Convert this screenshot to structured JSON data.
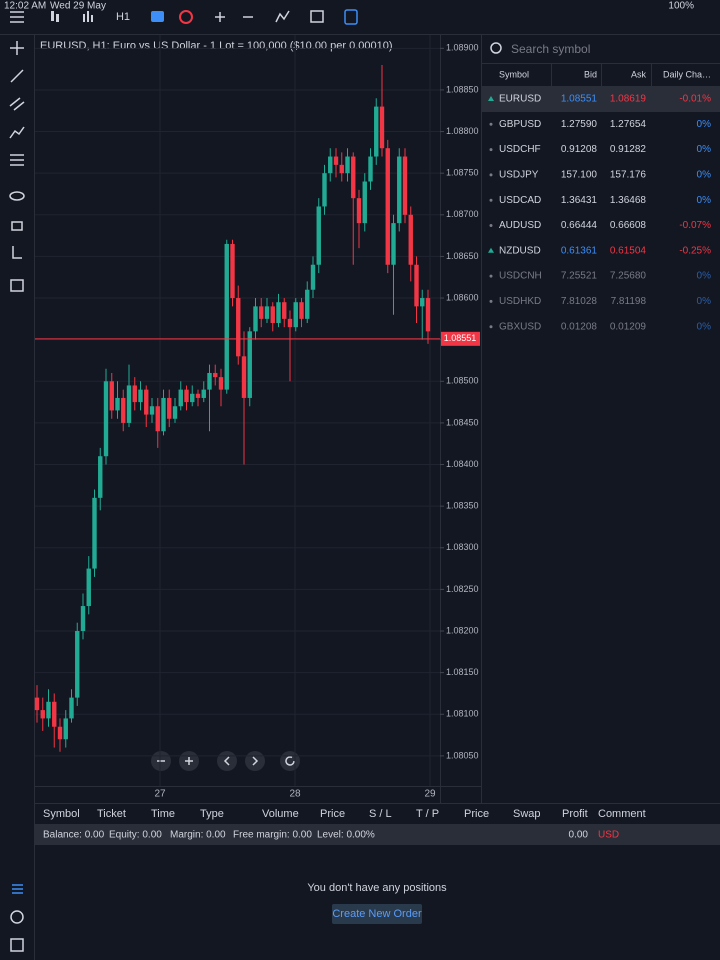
{
  "status_bar": {
    "time": "12:02 AM",
    "date": "Wed 29 May",
    "battery": "100%"
  },
  "toolbar": {
    "timeframe": "H1"
  },
  "chart": {
    "title": "EURUSD, H1: Euro vs US Dollar - 1 Lot = 100,000 ($10.00 per 0.00010)",
    "ylim": [
      1.07997,
      1.08916
    ],
    "yticks": [
      {
        "value": 1.089,
        "label": "1.08900"
      },
      {
        "value": 1.0885,
        "label": "1.08850"
      },
      {
        "value": 1.088,
        "label": "1.08800"
      },
      {
        "value": 1.0875,
        "label": "1.08750"
      },
      {
        "value": 1.087,
        "label": "1.08700"
      },
      {
        "value": 1.0865,
        "label": "1.08650"
      },
      {
        "value": 1.086,
        "label": "1.08600"
      },
      {
        "value": 1.0855,
        "label": "1.08550"
      },
      {
        "value": 1.085,
        "label": "1.08500"
      },
      {
        "value": 1.0845,
        "label": "1.08450"
      },
      {
        "value": 1.084,
        "label": "1.08400"
      },
      {
        "value": 1.0835,
        "label": "1.08350"
      },
      {
        "value": 1.083,
        "label": "1.08300"
      },
      {
        "value": 1.0825,
        "label": "1.08250"
      },
      {
        "value": 1.082,
        "label": "1.08200"
      },
      {
        "value": 1.0815,
        "label": "1.08150"
      },
      {
        "value": 1.081,
        "label": "1.08100"
      },
      {
        "value": 1.0805,
        "label": "1.08050"
      }
    ],
    "x_labels": [
      "27",
      "28",
      "29"
    ],
    "colors": {
      "up": "#22ab94",
      "down": "#f23645"
    },
    "last_price": {
      "value": 1.08551,
      "label": "1.08551"
    },
    "candles": [
      [
        1.0812,
        1.08135,
        1.0809,
        1.08105
      ],
      [
        1.08105,
        1.0812,
        1.0808,
        1.08095
      ],
      [
        1.08095,
        1.0813,
        1.08085,
        1.08115
      ],
      [
        1.08115,
        1.08125,
        1.0806,
        1.08085
      ],
      [
        1.08085,
        1.08095,
        1.08055,
        1.0807
      ],
      [
        1.0807,
        1.08105,
        1.0806,
        1.08095
      ],
      [
        1.08095,
        1.0813,
        1.0809,
        1.0812
      ],
      [
        1.0812,
        1.0821,
        1.0811,
        1.082
      ],
      [
        1.082,
        1.08245,
        1.0819,
        1.0823
      ],
      [
        1.0823,
        1.0829,
        1.0822,
        1.08275
      ],
      [
        1.08275,
        1.0837,
        1.08265,
        1.0836
      ],
      [
        1.0836,
        1.0842,
        1.08345,
        1.0841
      ],
      [
        1.0841,
        1.08515,
        1.084,
        1.085
      ],
      [
        1.085,
        1.0851,
        1.08455,
        1.08465
      ],
      [
        1.08465,
        1.085,
        1.08455,
        1.0848
      ],
      [
        1.0848,
        1.0849,
        1.0844,
        1.0845
      ],
      [
        1.0845,
        1.0852,
        1.08445,
        1.08495
      ],
      [
        1.08495,
        1.08505,
        1.08465,
        1.08475
      ],
      [
        1.08475,
        1.085,
        1.08465,
        1.0849
      ],
      [
        1.0849,
        1.08495,
        1.08445,
        1.0846
      ],
      [
        1.0846,
        1.0848,
        1.0845,
        1.0847
      ],
      [
        1.0847,
        1.0848,
        1.0842,
        1.0844
      ],
      [
        1.0844,
        1.0849,
        1.08435,
        1.0848
      ],
      [
        1.0848,
        1.0849,
        1.08445,
        1.08455
      ],
      [
        1.08455,
        1.0848,
        1.0845,
        1.0847
      ],
      [
        1.0847,
        1.085,
        1.08465,
        1.0849
      ],
      [
        1.0849,
        1.08495,
        1.08465,
        1.08475
      ],
      [
        1.08475,
        1.08495,
        1.0847,
        1.08485
      ],
      [
        1.08485,
        1.0849,
        1.0847,
        1.0848
      ],
      [
        1.0848,
        1.085,
        1.08475,
        1.0849
      ],
      [
        1.0849,
        1.0852,
        1.0844,
        1.0851
      ],
      [
        1.0851,
        1.0852,
        1.08495,
        1.08505
      ],
      [
        1.08505,
        1.08515,
        1.0847,
        1.0849
      ],
      [
        1.0849,
        1.0867,
        1.08485,
        1.08665
      ],
      [
        1.08665,
        1.0867,
        1.0859,
        1.086
      ],
      [
        1.086,
        1.08615,
        1.0852,
        1.0853
      ],
      [
        1.0853,
        1.0856,
        1.084,
        1.0848
      ],
      [
        1.0848,
        1.08565,
        1.0847,
        1.0856
      ],
      [
        1.0856,
        1.086,
        1.0855,
        1.0859
      ],
      [
        1.0859,
        1.086,
        1.08565,
        1.08575
      ],
      [
        1.08575,
        1.086,
        1.0857,
        1.0859
      ],
      [
        1.0859,
        1.08595,
        1.0856,
        1.0857
      ],
      [
        1.0857,
        1.08605,
        1.08565,
        1.08595
      ],
      [
        1.08595,
        1.086,
        1.08565,
        1.08575
      ],
      [
        1.08575,
        1.08585,
        1.085,
        1.08565
      ],
      [
        1.08565,
        1.086,
        1.0856,
        1.08595
      ],
      [
        1.08595,
        1.086,
        1.08565,
        1.08575
      ],
      [
        1.08575,
        1.0862,
        1.0857,
        1.0861
      ],
      [
        1.0861,
        1.0865,
        1.086,
        1.0864
      ],
      [
        1.0864,
        1.0872,
        1.0863,
        1.0871
      ],
      [
        1.0871,
        1.0876,
        1.087,
        1.0875
      ],
      [
        1.0875,
        1.0878,
        1.0874,
        1.0877
      ],
      [
        1.0877,
        1.0878,
        1.08745,
        1.0876
      ],
      [
        1.0876,
        1.08775,
        1.0874,
        1.0875
      ],
      [
        1.0875,
        1.0878,
        1.0874,
        1.0877
      ],
      [
        1.0877,
        1.08775,
        1.0864,
        1.0872
      ],
      [
        1.0872,
        1.0873,
        1.0866,
        1.0869
      ],
      [
        1.0869,
        1.0875,
        1.0868,
        1.0874
      ],
      [
        1.0874,
        1.0878,
        1.0873,
        1.0877
      ],
      [
        1.0877,
        1.0884,
        1.0876,
        1.0883
      ],
      [
        1.0883,
        1.0888,
        1.0877,
        1.0878
      ],
      [
        1.0878,
        1.0879,
        1.0863,
        1.0864
      ],
      [
        1.0864,
        1.087,
        1.0858,
        1.0869
      ],
      [
        1.0869,
        1.0878,
        1.0868,
        1.0877
      ],
      [
        1.0877,
        1.0878,
        1.0869,
        1.087
      ],
      [
        1.087,
        1.0871,
        1.0862,
        1.0864
      ],
      [
        1.0864,
        1.0865,
        1.0857,
        1.0859
      ],
      [
        1.0859,
        1.0861,
        1.0855,
        1.086
      ],
      [
        1.086,
        1.0861,
        1.08545,
        1.0856
      ]
    ]
  },
  "symbols": {
    "search_placeholder": "Search symbol",
    "columns": [
      "Symbol",
      "Bid",
      "Ask",
      "Daily Cha…"
    ],
    "rows": [
      [
        "EURUSD",
        "1.08551",
        "1.08619",
        "-0.01%"
      ],
      [
        "GBPUSD",
        "1.27590",
        "1.27654",
        "0%"
      ],
      [
        "USDCHF",
        "0.91208",
        "0.91282",
        "0%"
      ],
      [
        "USDJPY",
        "157.100",
        "157.176",
        "0%"
      ],
      [
        "USDCAD",
        "1.36431",
        "1.36468",
        "0%"
      ],
      [
        "AUDUSD",
        "0.66444",
        "0.66608",
        "-0.07%"
      ],
      [
        "NZDUSD",
        "0.61361",
        "0.61504",
        "-0.25%"
      ],
      [
        "USDCNH",
        "7.25521",
        "7.25680",
        "0%"
      ],
      [
        "USDHKD",
        "7.81028",
        "7.81198",
        "0%"
      ],
      [
        "GBXUSD",
        "0.01208",
        "0.01209",
        "0%"
      ]
    ]
  },
  "positions": {
    "columns": [
      "Symbol",
      "Ticket",
      "Time",
      "Type",
      "Volume",
      "Price",
      "S / L",
      "T / P",
      "Price",
      "Swap",
      "Profit",
      "Comment"
    ],
    "balance": [
      "Balance: 0.00",
      "Equity: 0.00",
      "Margin: 0.00",
      "Free margin: 0.00",
      "Level: 0.00%"
    ],
    "profit": "0.00",
    "currency": "USD",
    "empty_message": "You don't have any positions",
    "button": "Create New Order"
  }
}
